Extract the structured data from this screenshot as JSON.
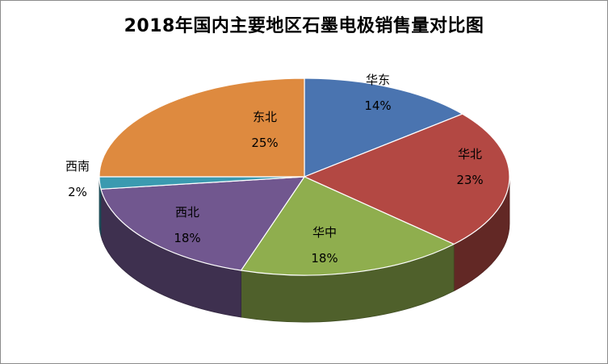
{
  "chart_data": {
    "type": "pie",
    "title": "2018年国内主要地区石墨电极销售量对比图",
    "categories": [
      "华东",
      "华北",
      "华中",
      "西北",
      "西南",
      "东北"
    ],
    "values": [
      14,
      23,
      18,
      18,
      2,
      25
    ],
    "value_labels": [
      "14%",
      "23%",
      "18%",
      "18%",
      "2%",
      "25%"
    ],
    "colors": [
      "#4a74b0",
      "#b34843",
      "#8fae4e",
      "#71578f",
      "#3b9ab0",
      "#de8a3f"
    ],
    "style": "3d",
    "legend": "none"
  }
}
